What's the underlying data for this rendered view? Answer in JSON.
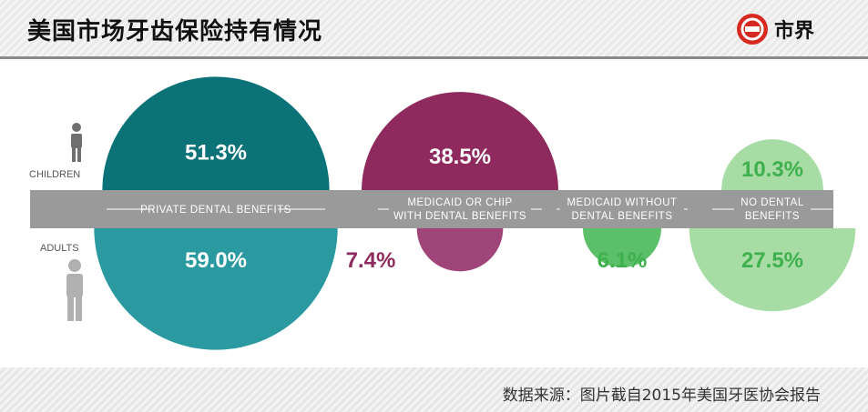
{
  "header": {
    "title": "美国市场牙齿保险持有情况",
    "logo_text": "市界"
  },
  "footer": {
    "source": "数据来源：图片截自2015年美国牙医协会报告"
  },
  "colors": {
    "private_children": "#0b7377",
    "private_adults": "#2a9aa0",
    "medicaid_chip": "#8f2a5e",
    "medicaid_chip_adult": "#a0457a",
    "medicaid_without": "#5cc06a",
    "no_dental": "#a7dca4",
    "no_dental_text": "#3fb04e",
    "band": "#9a9a9a",
    "icon": "#6f6f6f"
  },
  "chart_data": {
    "type": "semicircle-comparison",
    "groups": [
      "CHILDREN",
      "ADULTS"
    ],
    "categories": [
      {
        "name_lines": [
          "PRIVATE DENTAL BENEFITS"
        ],
        "children": 51.3,
        "adults": 59.0,
        "children_label": "51.3%",
        "adults_label": "59.0%"
      },
      {
        "name_lines": [
          "MEDICAID OR CHIP",
          "WITH DENTAL BENEFITS"
        ],
        "children": 38.5,
        "adults": 7.4,
        "children_label": "38.5%",
        "adults_label": "7.4%"
      },
      {
        "name_lines": [
          "MEDICAID WITHOUT",
          "DENTAL BENEFITS"
        ],
        "children": 0,
        "adults": 6.1,
        "children_label": "",
        "adults_label": "6.1%"
      },
      {
        "name_lines": [
          "NO DENTAL",
          "BENEFITS"
        ],
        "children": 10.3,
        "adults": 27.5,
        "children_label": "10.3%",
        "adults_label": "27.5%"
      }
    ]
  }
}
